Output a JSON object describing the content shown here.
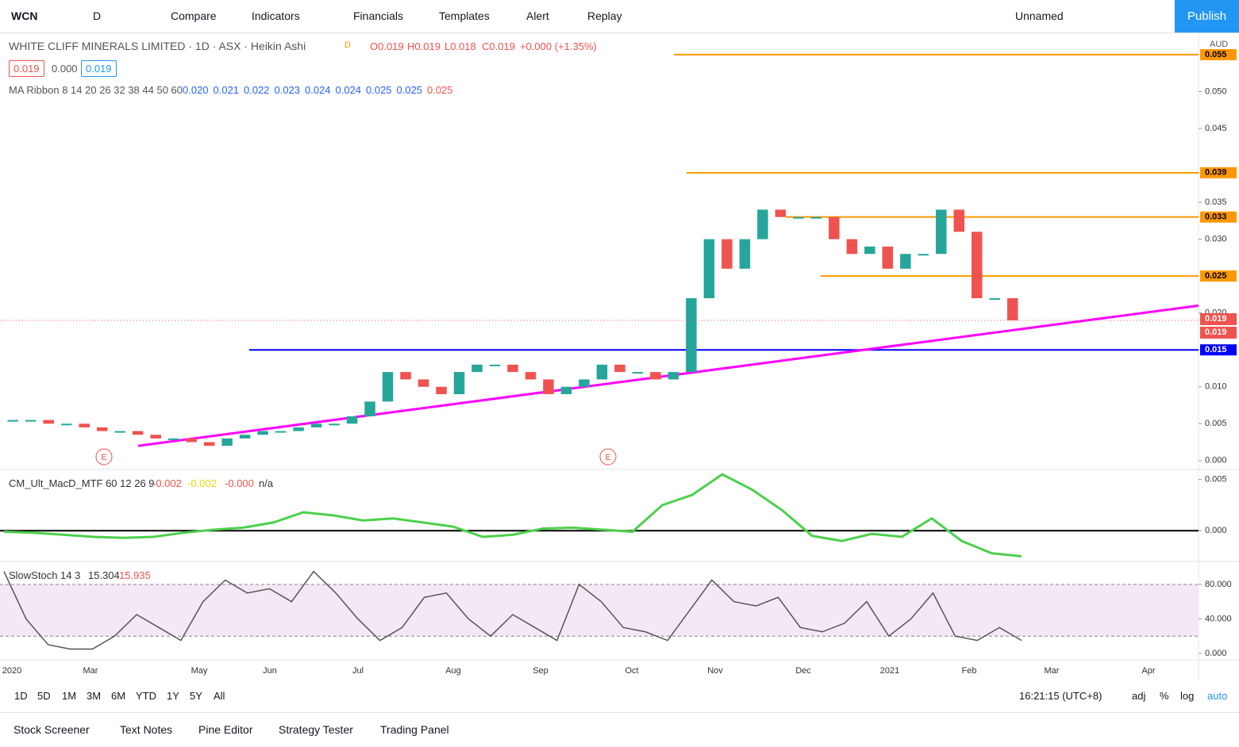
{
  "toolbar": {
    "symbol": "WCN",
    "interval": "D",
    "items": [
      "Compare",
      "Indicators",
      "Financials",
      "Templates",
      "Alert",
      "Replay"
    ],
    "layout_name": "Unnamed",
    "publish": "Publish"
  },
  "legend": {
    "title": "WHITE CLIFF MINERALS LIMITED · 1D · ASX · Heikin Ashi",
    "badge": "D",
    "ohlc": [
      "O0.019",
      "H0.019",
      "L0.018",
      "C0.019",
      "+0.000 (+1.35%)"
    ],
    "bid": "0.019",
    "spread": "0.000",
    "ask": "0.019",
    "ma_ribbon": {
      "name": "MA Ribbon 8 14 20 26 32 38 44 50 60",
      "values": [
        "0.020",
        "0.021",
        "0.022",
        "0.023",
        "0.024",
        "0.024",
        "0.025",
        "0.025",
        "0.025"
      ]
    }
  },
  "chart_data": [
    {
      "type": "candlestick",
      "currency": "AUD",
      "values": [
        0.0055,
        0.0055,
        0.005,
        0.005,
        0.0045,
        0.004,
        0.004,
        0.0035,
        0.003,
        0.003,
        0.0025,
        0.002,
        0.003,
        0.0035,
        0.004,
        0.004,
        0.0045,
        0.005,
        0.005,
        0.006,
        0.008,
        0.012,
        0.011,
        0.01,
        0.009,
        0.012,
        0.013,
        0.013,
        0.012,
        0.011,
        0.009,
        0.01,
        0.011,
        0.013,
        0.012,
        0.012,
        0.011,
        0.012,
        0.022,
        0.03,
        0.026,
        0.03,
        0.034,
        0.033,
        0.033,
        0.033,
        0.03,
        0.028,
        0.029,
        0.026,
        0.028,
        0.028,
        0.034,
        0.031,
        0.022,
        0.022,
        0.019
      ],
      "ylim": [
        -0.0012,
        0.058
      ],
      "yticks": [
        {
          "value": 0,
          "label": "0.000"
        },
        0.005,
        {
          "value": 0.01,
          "label": "0.010"
        },
        {
          "value": 0.02,
          "label": "0.020"
        },
        {
          "value": 0.03,
          "label": "0.030"
        },
        0.035,
        0.045,
        {
          "value": 0.05,
          "label": "0.050"
        }
      ],
      "levels": [
        {
          "value": 0.055,
          "color": "#ff9800"
        },
        {
          "value": 0.039,
          "color": "#ff9800"
        },
        {
          "value": 0.033,
          "color": "#ff9800"
        },
        {
          "value": 0.025,
          "color": "#ff9800"
        },
        {
          "value": 0.015,
          "color": "#0000ff"
        }
      ],
      "trendline": {
        "values": [
          0.002,
          0.021
        ],
        "color": "#ff00ff"
      },
      "last_price_labels": [
        "0.019",
        "0.019"
      ],
      "events": [
        "E",
        "E"
      ]
    },
    {
      "type": "line",
      "title": "CM_Ult_MacD_MTF 60 12 26 9",
      "legend_values": [
        "-0.002",
        "-0.002",
        "-0.000",
        "n/a"
      ],
      "values": [
        -0.0001,
        -0.0002,
        -0.0004,
        -0.0006,
        -0.0007,
        -0.0006,
        -0.0002,
        0.0001,
        0.0003,
        0.0008,
        0.0018,
        0.0015,
        0.001,
        0.0012,
        0.0008,
        0.0004,
        -0.0006,
        -0.0004,
        0.0002,
        0.0003,
        0.0001,
        -0.0001,
        0.0025,
        0.0035,
        0.0055,
        0.004,
        0.002,
        -0.0005,
        -0.001,
        -0.0003,
        -0.0006,
        0.0012,
        -0.001,
        -0.0022,
        -0.0025
      ],
      "color": "#4cd04c",
      "ylim": [
        -0.003,
        0.0059
      ],
      "yticks": [
        0.005,
        {
          "value": 0,
          "label": "0.000"
        }
      ]
    },
    {
      "type": "line",
      "title": "SlowStoch 14 3",
      "legend_values": [
        "15.304",
        "15.935"
      ],
      "values": [
        95,
        40,
        10,
        5,
        5,
        20,
        45,
        30,
        15,
        60,
        85,
        70,
        75,
        60,
        95,
        70,
        40,
        15,
        30,
        65,
        70,
        40,
        20,
        45,
        30,
        15,
        80,
        60,
        30,
        25,
        15,
        50,
        85,
        60,
        55,
        65,
        30,
        25,
        35,
        60,
        20,
        40,
        70,
        20,
        15,
        30,
        15
      ],
      "color": "#555555",
      "ylim": [
        -7.4,
        105.7
      ],
      "yticks": [
        {
          "value": 80,
          "label": "80.000"
        },
        {
          "value": 40,
          "label": "40.000"
        },
        {
          "value": 0,
          "label": "0.000"
        }
      ],
      "band": [
        20,
        80
      ]
    }
  ],
  "time_axis": [
    "2020",
    "Mar",
    "May",
    "Jun",
    "Jul",
    "Aug",
    "Sep",
    "Oct",
    "Nov",
    "Dec",
    "2021",
    "Feb",
    "Mar",
    "Apr"
  ],
  "range_buttons": [
    "1D",
    "5D",
    "1M",
    "3M",
    "6M",
    "YTD",
    "1Y",
    "5Y",
    "All"
  ],
  "clock": "16:21:15 (UTC+8)",
  "scale_buttons": [
    "adj",
    "%",
    "log",
    "auto"
  ],
  "tabs": [
    "Stock Screener",
    "Text Notes",
    "Pine Editor",
    "Strategy Tester",
    "Trading Panel"
  ]
}
